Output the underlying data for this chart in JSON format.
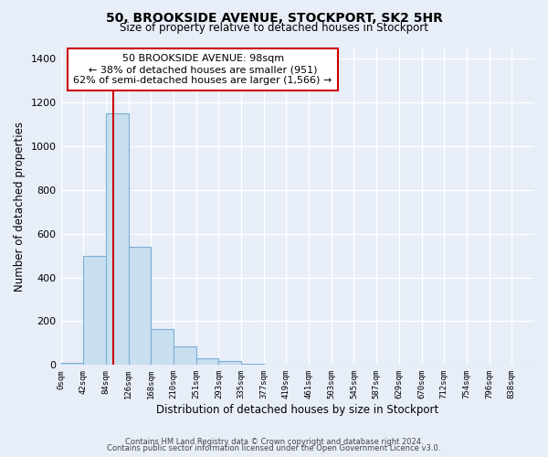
{
  "title": "50, BROOKSIDE AVENUE, STOCKPORT, SK2 5HR",
  "subtitle": "Size of property relative to detached houses in Stockport",
  "xlabel": "Distribution of detached houses by size in Stockport",
  "ylabel": "Number of detached properties",
  "bar_labels": [
    "0sqm",
    "42sqm",
    "84sqm",
    "126sqm",
    "168sqm",
    "210sqm",
    "251sqm",
    "293sqm",
    "335sqm",
    "377sqm",
    "419sqm",
    "461sqm",
    "503sqm",
    "545sqm",
    "587sqm",
    "629sqm",
    "670sqm",
    "712sqm",
    "754sqm",
    "796sqm",
    "838sqm"
  ],
  "bar_values": [
    10,
    500,
    1150,
    540,
    165,
    85,
    30,
    18,
    5,
    0,
    0,
    0,
    0,
    0,
    0,
    0,
    0,
    0,
    0,
    0,
    0
  ],
  "bar_color": "#c8dff0",
  "bar_edge_color": "#7bafd4",
  "property_line_x": 98,
  "property_line_color": "#cc0000",
  "ylim": [
    0,
    1450
  ],
  "yticks": [
    0,
    200,
    400,
    600,
    800,
    1000,
    1200,
    1400
  ],
  "annotation_title": "50 BROOKSIDE AVENUE: 98sqm",
  "annotation_line1": "← 38% of detached houses are smaller (951)",
  "annotation_line2": "62% of semi-detached houses are larger (1,566) →",
  "annotation_box_color": "#ffffff",
  "annotation_box_edge": "#cc0000",
  "background_color": "#e8eef8",
  "plot_bg_color": "#e8eef8",
  "footer_line1": "Contains HM Land Registry data © Crown copyright and database right 2024.",
  "footer_line2": "Contains public sector information licensed under the Open Government Licence v3.0.",
  "bin_width": 42,
  "num_bins": 21
}
